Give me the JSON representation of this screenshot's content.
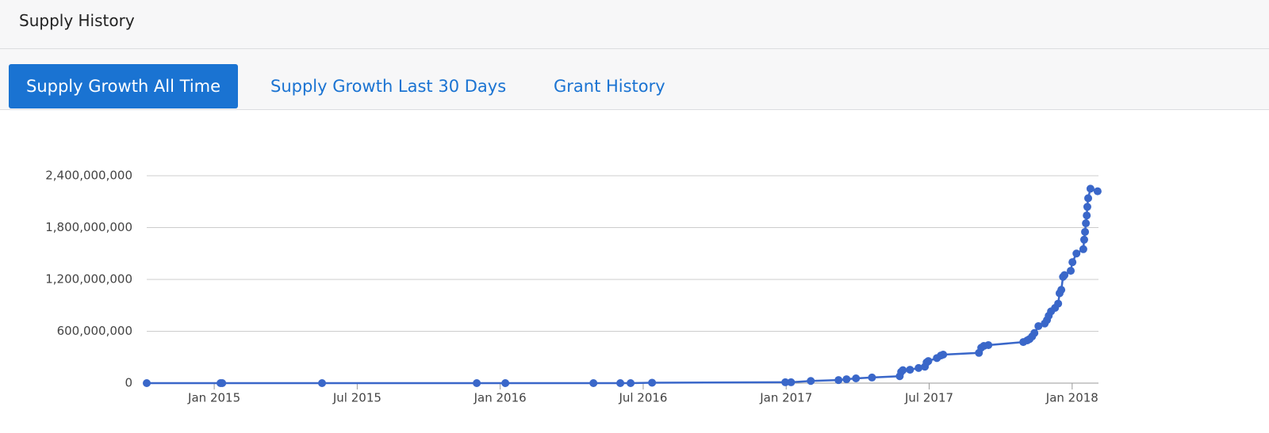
{
  "header": {
    "title": "Supply History"
  },
  "tabs": [
    "Supply Growth All Time",
    "Supply Growth Last 30 Days",
    "Grant History"
  ],
  "chart_data": {
    "type": "line",
    "color": "#3a67c9",
    "x": [
      2014.764,
      2015.022,
      2015.028,
      2015.377,
      2015.918,
      2016.018,
      2016.326,
      2016.42,
      2016.456,
      2016.531,
      2016.997,
      2017.017,
      2017.086,
      2017.183,
      2017.211,
      2017.244,
      2017.3,
      2017.397,
      2017.402,
      2017.408,
      2017.433,
      2017.463,
      2017.485,
      2017.491,
      2017.497,
      2017.527,
      2017.541,
      2017.549,
      2017.674,
      2017.682,
      2017.691,
      2017.707,
      2017.829,
      2017.843,
      2017.851,
      2017.86,
      2017.868,
      2017.882,
      2017.904,
      2017.912,
      2017.918,
      2017.926,
      2017.94,
      2017.951,
      2017.956,
      2017.962,
      2017.968,
      2017.973,
      2017.995,
      2018.001,
      2018.015,
      2018.039,
      2018.042,
      2018.045,
      2018.048,
      2018.051,
      2018.053,
      2018.056,
      2018.064,
      2018.089
    ],
    "values": [
      0,
      0,
      0,
      0,
      0,
      0,
      0,
      0,
      0,
      5000000,
      10000000,
      10000000,
      25000000,
      35000000,
      45000000,
      55000000,
      65000000,
      80000000,
      130000000,
      150000000,
      155000000,
      175000000,
      190000000,
      240000000,
      255000000,
      290000000,
      320000000,
      330000000,
      350000000,
      410000000,
      430000000,
      440000000,
      475000000,
      495000000,
      510000000,
      540000000,
      580000000,
      660000000,
      690000000,
      730000000,
      780000000,
      830000000,
      870000000,
      920000000,
      1040000000,
      1080000000,
      1230000000,
      1250000000,
      1300000000,
      1400000000,
      1500000000,
      1550000000,
      1660000000,
      1750000000,
      1850000000,
      1940000000,
      2040000000,
      2140000000,
      2250000000,
      2220000000
    ],
    "xlim": [
      2014.764,
      2018.092
    ],
    "xticks": [
      {
        "value": 2015,
        "label": "Jan 2015"
      },
      {
        "value": 2015.5,
        "label": "Jul 2015"
      },
      {
        "value": 2016,
        "label": "Jan 2016"
      },
      {
        "value": 2016.5,
        "label": "Jul 2016"
      },
      {
        "value": 2017,
        "label": "Jan 2017"
      },
      {
        "value": 2017.5,
        "label": "Jul 2017"
      },
      {
        "value": 2018,
        "label": "Jan 2018"
      }
    ],
    "ylim": [
      0,
      2400000000
    ],
    "yticks": [
      0,
      {
        "value": 600000000,
        "label": "600,000,000"
      },
      {
        "value": 1200000000,
        "label": "1,200,000,000"
      },
      {
        "value": 1800000000,
        "label": "1,800,000,000"
      },
      {
        "value": 2400000000,
        "label": "2,400,000,000"
      }
    ],
    "grid": true
  }
}
